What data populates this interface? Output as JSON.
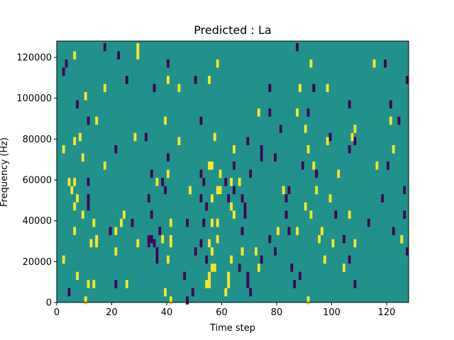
{
  "chart_data": {
    "type": "heatmap",
    "title": "Predicted : La",
    "xlabel": "Time step",
    "ylabel": "Frequency (Hz)",
    "xlim": [
      0,
      128
    ],
    "ylim": [
      0,
      128000
    ],
    "x_ticks": [
      0,
      20,
      40,
      60,
      80,
      100,
      120
    ],
    "y_ticks": [
      0,
      20000,
      40000,
      60000,
      80000,
      100000,
      120000
    ],
    "x_tick_labels": [
      "0",
      "20",
      "40",
      "60",
      "80",
      "100",
      "120"
    ],
    "y_tick_labels": [
      "0",
      "20000",
      "40000",
      "60000",
      "80000",
      "100000",
      "120000"
    ],
    "background_value": 0,
    "colormap": {
      "-1": "#440154",
      "0": "#21918c",
      "1": "#fde725"
    },
    "grid": false,
    "cells": [
      {
        "t": 17,
        "f": 126000,
        "v": -1
      },
      {
        "t": 29,
        "f": 126000,
        "v": 1
      },
      {
        "t": 87,
        "f": 126000,
        "v": -1
      },
      {
        "t": 87,
        "f": 126000,
        "v": -1
      },
      {
        "t": 6,
        "f": 122000,
        "v": 1
      },
      {
        "t": 22,
        "f": 122000,
        "v": -1
      },
      {
        "t": 29,
        "f": 122000,
        "v": 1
      },
      {
        "t": 3,
        "f": 118000,
        "v": -1
      },
      {
        "t": 40,
        "f": 118000,
        "v": -1
      },
      {
        "t": 58,
        "f": 118000,
        "v": 1
      },
      {
        "t": 92,
        "f": 118000,
        "v": 1
      },
      {
        "t": 115,
        "f": 118000,
        "v": 1
      },
      {
        "t": 119,
        "f": 118000,
        "v": -1
      },
      {
        "t": 2,
        "f": 114000,
        "v": -1
      },
      {
        "t": 25,
        "f": 110000,
        "v": -1
      },
      {
        "t": 40,
        "f": 110000,
        "v": 1
      },
      {
        "t": 50,
        "f": 110000,
        "v": -1
      },
      {
        "t": 55,
        "f": 110000,
        "v": 1
      },
      {
        "t": 127,
        "f": 110000,
        "v": -1
      },
      {
        "t": 17,
        "f": 106000,
        "v": 1
      },
      {
        "t": 35,
        "f": 106000,
        "v": -1
      },
      {
        "t": 44,
        "f": 106000,
        "v": 1
      },
      {
        "t": 77,
        "f": 106000,
        "v": -1
      },
      {
        "t": 88,
        "f": 106000,
        "v": 1
      },
      {
        "t": 93,
        "f": 106000,
        "v": -1
      },
      {
        "t": 98,
        "f": 106000,
        "v": 1
      },
      {
        "t": 10,
        "f": 102000,
        "v": 1
      },
      {
        "t": 7,
        "f": 98000,
        "v": -1
      },
      {
        "t": 106,
        "f": 98000,
        "v": -1
      },
      {
        "t": 121,
        "f": 98000,
        "v": -1
      },
      {
        "t": 73,
        "f": 94000,
        "v": 1
      },
      {
        "t": 77,
        "f": 94000,
        "v": -1
      },
      {
        "t": 87,
        "f": 94000,
        "v": 1
      },
      {
        "t": 91,
        "f": 94000,
        "v": -1
      },
      {
        "t": 11,
        "f": 90000,
        "v": -1
      },
      {
        "t": 14,
        "f": 90000,
        "v": 1
      },
      {
        "t": 39,
        "f": 90000,
        "v": 1
      },
      {
        "t": 52,
        "f": 90000,
        "v": -1
      },
      {
        "t": 121,
        "f": 90000,
        "v": 1
      },
      {
        "t": 124,
        "f": 90000,
        "v": -1
      },
      {
        "t": 81,
        "f": 86000,
        "v": -1
      },
      {
        "t": 90,
        "f": 86000,
        "v": 1
      },
      {
        "t": 108,
        "f": 86000,
        "v": 1
      },
      {
        "t": 8,
        "f": 82000,
        "v": 1
      },
      {
        "t": 28,
        "f": 82000,
        "v": 1
      },
      {
        "t": 32,
        "f": 82000,
        "v": -1
      },
      {
        "t": 57,
        "f": 82000,
        "v": 1
      },
      {
        "t": 99,
        "f": 82000,
        "v": -1
      },
      {
        "t": 107,
        "f": 82000,
        "v": 1
      },
      {
        "t": 6,
        "f": 80000,
        "v": 1
      },
      {
        "t": 44,
        "f": 80000,
        "v": 1
      },
      {
        "t": 69,
        "f": 80000,
        "v": -1
      },
      {
        "t": 98,
        "f": 80000,
        "v": 1
      },
      {
        "t": 108,
        "f": 80000,
        "v": -1
      },
      {
        "t": 2,
        "f": 76000,
        "v": 1
      },
      {
        "t": 21,
        "f": 76000,
        "v": -1
      },
      {
        "t": 64,
        "f": 76000,
        "v": 1
      },
      {
        "t": 74,
        "f": 76000,
        "v": -1
      },
      {
        "t": 91,
        "f": 76000,
        "v": 1
      },
      {
        "t": 106,
        "f": 76000,
        "v": -1
      },
      {
        "t": 122,
        "f": 76000,
        "v": 1
      },
      {
        "t": 9,
        "f": 72000,
        "v": 1
      },
      {
        "t": 40,
        "f": 72000,
        "v": -1
      },
      {
        "t": 74,
        "f": 72000,
        "v": -1
      },
      {
        "t": 79,
        "f": 72000,
        "v": -1
      },
      {
        "t": 17,
        "f": 68000,
        "v": 1
      },
      {
        "t": 55,
        "f": 68000,
        "v": 1
      },
      {
        "t": 56,
        "f": 68000,
        "v": 1
      },
      {
        "t": 64,
        "f": 68000,
        "v": -1
      },
      {
        "t": 89,
        "f": 68000,
        "v": -1
      },
      {
        "t": 93,
        "f": 68000,
        "v": 1
      },
      {
        "t": 116,
        "f": 68000,
        "v": 1
      },
      {
        "t": 120,
        "f": 68000,
        "v": -1
      },
      {
        "t": 34,
        "f": 64000,
        "v": -1
      },
      {
        "t": 40,
        "f": 64000,
        "v": 1
      },
      {
        "t": 52,
        "f": 64000,
        "v": -1
      },
      {
        "t": 59,
        "f": 64000,
        "v": 1
      },
      {
        "t": 70,
        "f": 64000,
        "v": -1
      },
      {
        "t": 94,
        "f": 64000,
        "v": -1
      },
      {
        "t": 102,
        "f": 64000,
        "v": 1
      },
      {
        "t": 4,
        "f": 60000,
        "v": 1
      },
      {
        "t": 6,
        "f": 60000,
        "v": 1
      },
      {
        "t": 11,
        "f": 60000,
        "v": -1
      },
      {
        "t": 36,
        "f": 60000,
        "v": 1
      },
      {
        "t": 38,
        "f": 60000,
        "v": -1
      },
      {
        "t": 53,
        "f": 60000,
        "v": -1
      },
      {
        "t": 61,
        "f": 60000,
        "v": -1
      },
      {
        "t": 63,
        "f": 60000,
        "v": 1
      },
      {
        "t": 66,
        "f": 60000,
        "v": 1
      },
      {
        "t": 5,
        "f": 56000,
        "v": 1
      },
      {
        "t": 39,
        "f": 56000,
        "v": -1
      },
      {
        "t": 48,
        "f": 56000,
        "v": 1
      },
      {
        "t": 58,
        "f": 56000,
        "v": 1
      },
      {
        "t": 59,
        "f": 56000,
        "v": 1
      },
      {
        "t": 64,
        "f": 56000,
        "v": -1
      },
      {
        "t": 82,
        "f": 56000,
        "v": 1
      },
      {
        "t": 84,
        "f": 56000,
        "v": -1
      },
      {
        "t": 94,
        "f": 56000,
        "v": 1
      },
      {
        "t": 126,
        "f": 56000,
        "v": -1
      },
      {
        "t": 7,
        "f": 52000,
        "v": 1
      },
      {
        "t": 11,
        "f": 52000,
        "v": -1
      },
      {
        "t": 33,
        "f": 52000,
        "v": -1
      },
      {
        "t": 52,
        "f": 52000,
        "v": -1
      },
      {
        "t": 56,
        "f": 52000,
        "v": 1
      },
      {
        "t": 62,
        "f": 52000,
        "v": -1
      },
      {
        "t": 67,
        "f": 52000,
        "v": -1
      },
      {
        "t": 83,
        "f": 52000,
        "v": -1
      },
      {
        "t": 99,
        "f": 52000,
        "v": 1
      },
      {
        "t": 118,
        "f": 52000,
        "v": -1
      },
      {
        "t": 6,
        "f": 48000,
        "v": 1
      },
      {
        "t": 11,
        "f": 48000,
        "v": -1
      },
      {
        "t": 54,
        "f": 48000,
        "v": -1
      },
      {
        "t": 63,
        "f": 48000,
        "v": 1
      },
      {
        "t": 68,
        "f": 48000,
        "v": -1
      },
      {
        "t": 90,
        "f": 48000,
        "v": 1
      },
      {
        "t": 9,
        "f": 44000,
        "v": 1
      },
      {
        "t": 24,
        "f": 44000,
        "v": 1
      },
      {
        "t": 34,
        "f": 44000,
        "v": -1
      },
      {
        "t": 64,
        "f": 44000,
        "v": 1
      },
      {
        "t": 68,
        "f": 44000,
        "v": -1
      },
      {
        "t": 83,
        "f": 44000,
        "v": -1
      },
      {
        "t": 92,
        "f": 44000,
        "v": 1
      },
      {
        "t": 101,
        "f": 44000,
        "v": -1
      },
      {
        "t": 106,
        "f": 44000,
        "v": 1
      },
      {
        "t": 126,
        "f": 44000,
        "v": -1
      },
      {
        "t": 13,
        "f": 40000,
        "v": 1
      },
      {
        "t": 23,
        "f": 40000,
        "v": 1
      },
      {
        "t": 27,
        "f": 40000,
        "v": -1
      },
      {
        "t": 41,
        "f": 40000,
        "v": 1
      },
      {
        "t": 47,
        "f": 40000,
        "v": -1
      },
      {
        "t": 53,
        "f": 40000,
        "v": -1
      },
      {
        "t": 56,
        "f": 40000,
        "v": 1
      },
      {
        "t": 58,
        "f": 40000,
        "v": 1
      },
      {
        "t": 113,
        "f": 40000,
        "v": -1
      },
      {
        "t": 6,
        "f": 36000,
        "v": 1
      },
      {
        "t": 19,
        "f": 36000,
        "v": -1
      },
      {
        "t": 21,
        "f": 36000,
        "v": 1
      },
      {
        "t": 37,
        "f": 36000,
        "v": -1
      },
      {
        "t": 67,
        "f": 36000,
        "v": -1
      },
      {
        "t": 80,
        "f": 36000,
        "v": 1
      },
      {
        "t": 84,
        "f": 36000,
        "v": -1
      },
      {
        "t": 87,
        "f": 36000,
        "v": 1
      },
      {
        "t": 96,
        "f": 36000,
        "v": 1
      },
      {
        "t": 122,
        "f": 36000,
        "v": -1
      },
      {
        "t": 14,
        "f": 32000,
        "v": 1
      },
      {
        "t": 33,
        "f": 32000,
        "v": -1
      },
      {
        "t": 34,
        "f": 32000,
        "v": -1
      },
      {
        "t": 38,
        "f": 32000,
        "v": 1
      },
      {
        "t": 41,
        "f": 32000,
        "v": 1
      },
      {
        "t": 58,
        "f": 32000,
        "v": 1
      },
      {
        "t": 77,
        "f": 32000,
        "v": -1
      },
      {
        "t": 95,
        "f": 32000,
        "v": 1
      },
      {
        "t": 104,
        "f": 32000,
        "v": -1
      },
      {
        "t": 125,
        "f": 32000,
        "v": 1
      },
      {
        "t": 12,
        "f": 30000,
        "v": 1
      },
      {
        "t": 14,
        "f": 30000,
        "v": 1
      },
      {
        "t": 29,
        "f": 30000,
        "v": 1
      },
      {
        "t": 33,
        "f": 30000,
        "v": -1
      },
      {
        "t": 35,
        "f": 30000,
        "v": -1
      },
      {
        "t": 41,
        "f": 30000,
        "v": 1
      },
      {
        "t": 52,
        "f": 30000,
        "v": -1
      },
      {
        "t": 55,
        "f": 30000,
        "v": 1
      },
      {
        "t": 100,
        "f": 30000,
        "v": 1
      },
      {
        "t": 108,
        "f": 30000,
        "v": 1
      },
      {
        "t": 21,
        "f": 26000,
        "v": 1
      },
      {
        "t": 36,
        "f": 26000,
        "v": -1
      },
      {
        "t": 50,
        "f": 26000,
        "v": -1
      },
      {
        "t": 56,
        "f": 26000,
        "v": 1
      },
      {
        "t": 67,
        "f": 26000,
        "v": 1
      },
      {
        "t": 72,
        "f": 26000,
        "v": 1
      },
      {
        "t": 79,
        "f": 26000,
        "v": -1
      },
      {
        "t": 127,
        "f": 26000,
        "v": -1
      },
      {
        "t": 2,
        "f": 22000,
        "v": 1
      },
      {
        "t": 36,
        "f": 22000,
        "v": -1
      },
      {
        "t": 40,
        "f": 22000,
        "v": 1
      },
      {
        "t": 54,
        "f": 22000,
        "v": -1
      },
      {
        "t": 63,
        "f": 22000,
        "v": 1
      },
      {
        "t": 74,
        "f": 22000,
        "v": -1
      },
      {
        "t": 97,
        "f": 22000,
        "v": 1
      },
      {
        "t": 106,
        "f": 22000,
        "v": -1
      },
      {
        "t": 56,
        "f": 18000,
        "v": 1
      },
      {
        "t": 57,
        "f": 18000,
        "v": 1
      },
      {
        "t": 66,
        "f": 18000,
        "v": -1
      },
      {
        "t": 73,
        "f": 18000,
        "v": 1
      },
      {
        "t": 85,
        "f": 18000,
        "v": -1
      },
      {
        "t": 104,
        "f": 18000,
        "v": 1
      },
      {
        "t": 7,
        "f": 14000,
        "v": 1
      },
      {
        "t": 46,
        "f": 14000,
        "v": -1
      },
      {
        "t": 55,
        "f": 14000,
        "v": 1
      },
      {
        "t": 62,
        "f": 14000,
        "v": 1
      },
      {
        "t": 69,
        "f": 14000,
        "v": -1
      },
      {
        "t": 88,
        "f": 14000,
        "v": -1
      },
      {
        "t": 11,
        "f": 10000,
        "v": 1
      },
      {
        "t": 13,
        "f": 10000,
        "v": 1
      },
      {
        "t": 21,
        "f": 10000,
        "v": -1
      },
      {
        "t": 25,
        "f": 10000,
        "v": 1
      },
      {
        "t": 54,
        "f": 10000,
        "v": 1
      },
      {
        "t": 55,
        "f": 10000,
        "v": 1
      },
      {
        "t": 62,
        "f": 10000,
        "v": 1
      },
      {
        "t": 69,
        "f": 10000,
        "v": -1
      },
      {
        "t": 86,
        "f": 10000,
        "v": -1
      },
      {
        "t": 108,
        "f": 10000,
        "v": -1
      },
      {
        "t": 4,
        "f": 6000,
        "v": -1
      },
      {
        "t": 39,
        "f": 6000,
        "v": 1
      },
      {
        "t": 49,
        "f": 6000,
        "v": -1
      },
      {
        "t": 61,
        "f": 6000,
        "v": 1
      },
      {
        "t": 70,
        "f": 6000,
        "v": -1
      },
      {
        "t": 10,
        "f": 2000,
        "v": 1
      },
      {
        "t": 41,
        "f": 2000,
        "v": 1
      },
      {
        "t": 47,
        "f": 2000,
        "v": -1
      },
      {
        "t": 91,
        "f": 2000,
        "v": 1
      }
    ]
  }
}
